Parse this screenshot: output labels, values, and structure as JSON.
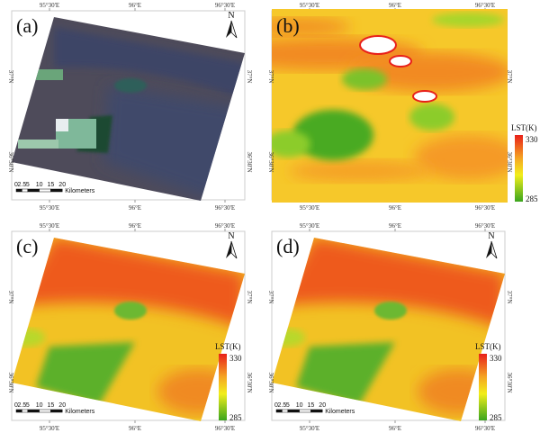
{
  "panels": [
    {
      "label": "(a)",
      "kind": "rgb",
      "north_arrow": true,
      "scale_bar": true,
      "legend": false
    },
    {
      "label": "(b)",
      "kind": "lst_coarse",
      "north_arrow": false,
      "scale_bar": false,
      "legend": true
    },
    {
      "label": "(c)",
      "kind": "lst_fine",
      "north_arrow": true,
      "scale_bar": true,
      "legend": true
    },
    {
      "label": "(d)",
      "kind": "lst_fine",
      "north_arrow": true,
      "scale_bar": true,
      "legend": true
    }
  ],
  "axes": {
    "lon_ticks": [
      "95°30'E",
      "96°E",
      "96°30'E"
    ],
    "lat_ticks": [
      "37°N",
      "36°30'N"
    ]
  },
  "north_label": "N",
  "scale_bar": {
    "ticks": [
      "0",
      "2.5",
      "5",
      "10",
      "15",
      "20"
    ],
    "unit": "Kilometers"
  },
  "legend": {
    "title": "LST(K)",
    "max": "330",
    "min": "285",
    "colors": [
      "#e8201a",
      "#f5a623",
      "#f2ee1a",
      "#3aa51e"
    ]
  }
}
